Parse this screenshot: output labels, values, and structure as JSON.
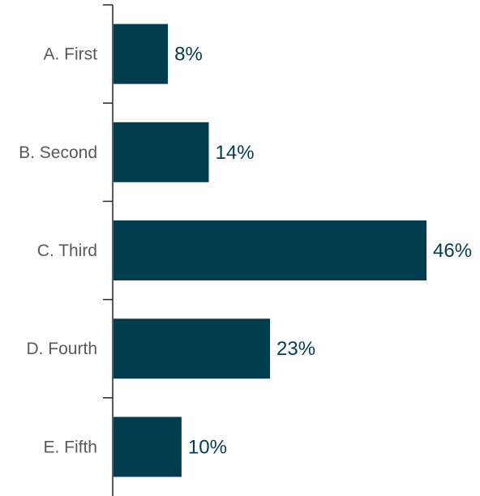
{
  "chart_data": {
    "type": "bar",
    "orientation": "horizontal",
    "categories": [
      "A. First",
      "B. Second",
      "C. Third",
      "D. Fourth",
      "E. Fifth"
    ],
    "values": [
      8,
      14,
      46,
      23,
      10
    ],
    "data_labels": [
      "8%",
      "14%",
      "46%",
      "23%",
      "10%"
    ],
    "unit": "%",
    "xlim": [
      0,
      46
    ],
    "grid": false,
    "legend": "none",
    "bar_color": "#023d4f",
    "label_color": "#023d4f",
    "axis_color": "#262626",
    "category_label_color": "#595959"
  }
}
